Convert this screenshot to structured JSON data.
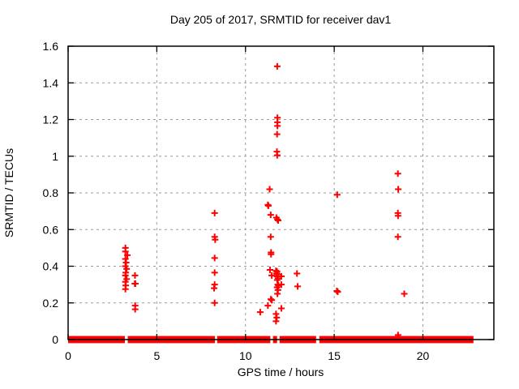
{
  "chart_data": {
    "type": "scatter",
    "title": "Day 205 of 2017, SRMTID for receiver dav1",
    "xlabel": "GPS time / hours",
    "ylabel": "SRMTID / TECUs",
    "xlim": [
      0,
      24
    ],
    "ylim": [
      0,
      1.6
    ],
    "xticks": [
      0,
      5,
      10,
      15,
      20
    ],
    "xtick_labels": [
      "0",
      "5",
      "10",
      "15",
      "20"
    ],
    "yticks": [
      0,
      0.2,
      0.4,
      0.6,
      0.8,
      1,
      1.2,
      1.4,
      1.6
    ],
    "ytick_labels": [
      "0",
      "0.2",
      "0.4",
      "0.6",
      "0.8",
      "1",
      "1.2",
      "1.4",
      "1.6"
    ],
    "grid": true,
    "legend_position": "none",
    "marker": "plus",
    "colors": {
      "points": "#ff0000",
      "border": "#000000",
      "grid": "#9b9b9b",
      "text": "#000000",
      "background": "#ffffff"
    },
    "series": [
      {
        "name": "SRMTID",
        "color": "#ff0000",
        "points": [
          [
            3.23,
            0.5
          ],
          [
            3.23,
            0.48
          ],
          [
            3.34,
            0.46
          ],
          [
            3.23,
            0.44
          ],
          [
            3.27,
            0.42
          ],
          [
            3.23,
            0.4
          ],
          [
            3.3,
            0.385
          ],
          [
            3.25,
            0.365
          ],
          [
            3.23,
            0.35
          ],
          [
            3.3,
            0.33
          ],
          [
            3.23,
            0.315
          ],
          [
            3.25,
            0.295
          ],
          [
            3.23,
            0.275
          ],
          [
            3.77,
            0.35
          ],
          [
            3.76,
            0.305
          ],
          [
            3.79,
            0.305
          ],
          [
            3.78,
            0.185
          ],
          [
            3.78,
            0.165
          ],
          [
            8.26,
            0.69
          ],
          [
            8.26,
            0.56
          ],
          [
            8.29,
            0.545
          ],
          [
            8.26,
            0.445
          ],
          [
            8.26,
            0.365
          ],
          [
            8.26,
            0.3
          ],
          [
            8.23,
            0.28
          ],
          [
            8.26,
            0.2
          ],
          [
            10.83,
            0.15
          ],
          [
            11.79,
            1.49
          ],
          [
            11.8,
            1.21
          ],
          [
            11.8,
            1.185
          ],
          [
            11.8,
            1.165
          ],
          [
            11.78,
            1.12
          ],
          [
            11.77,
            1.025
          ],
          [
            11.79,
            1.005
          ],
          [
            11.36,
            0.82
          ],
          [
            11.26,
            0.735
          ],
          [
            11.29,
            0.73
          ],
          [
            11.42,
            0.68
          ],
          [
            11.74,
            0.665
          ],
          [
            11.8,
            0.655
          ],
          [
            11.84,
            0.65
          ],
          [
            11.42,
            0.56
          ],
          [
            11.44,
            0.475
          ],
          [
            11.44,
            0.465
          ],
          [
            11.38,
            0.38
          ],
          [
            11.72,
            0.375
          ],
          [
            11.78,
            0.37
          ],
          [
            11.75,
            0.36
          ],
          [
            11.81,
            0.355
          ],
          [
            11.48,
            0.35
          ],
          [
            11.77,
            0.345
          ],
          [
            11.83,
            0.335
          ],
          [
            11.79,
            0.325
          ],
          [
            12.02,
            0.345
          ],
          [
            11.82,
            0.3
          ],
          [
            11.86,
            0.295
          ],
          [
            11.78,
            0.285
          ],
          [
            12.02,
            0.3
          ],
          [
            11.83,
            0.27
          ],
          [
            11.8,
            0.25
          ],
          [
            11.43,
            0.22
          ],
          [
            11.48,
            0.215
          ],
          [
            11.26,
            0.185
          ],
          [
            12.02,
            0.17
          ],
          [
            11.72,
            0.14
          ],
          [
            11.76,
            0.12
          ],
          [
            11.72,
            0.1
          ],
          [
            12.9,
            0.36
          ],
          [
            12.94,
            0.29
          ],
          [
            15.17,
            0.79
          ],
          [
            15.15,
            0.265
          ],
          [
            15.2,
            0.26
          ],
          [
            18.59,
            0.905
          ],
          [
            18.61,
            0.82
          ],
          [
            18.59,
            0.69
          ],
          [
            18.6,
            0.675
          ],
          [
            18.59,
            0.56
          ],
          [
            18.95,
            0.25
          ],
          [
            18.6,
            0.025
          ]
        ]
      }
    ],
    "zero_band": {
      "description": "dense run of SRMTID = 0 values along the x axis",
      "segments_hours": [
        [
          0.0,
          3.2
        ],
        [
          3.36,
          8.28
        ],
        [
          8.4,
          11.4
        ],
        [
          11.55,
          11.78
        ],
        [
          11.92,
          13.98
        ],
        [
          14.16,
          22.85
        ]
      ]
    }
  }
}
